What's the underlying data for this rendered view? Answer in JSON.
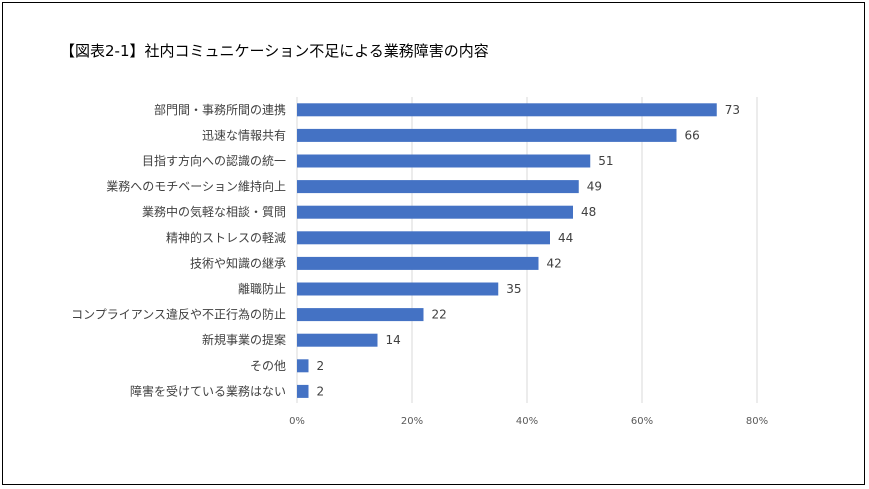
{
  "chart_data": {
    "type": "bar",
    "orientation": "horizontal",
    "title": "【図表2-1】社内コミュニケーション不足による業務障害の内容",
    "categories": [
      "部門間・事務所間の連携",
      "迅速な情報共有",
      "目指す方向への認識の統一",
      "業務へのモチベーション維持向上",
      "業務中の気軽な相談・質問",
      "精神的ストレスの軽減",
      "技術や知識の継承",
      "離職防止",
      "コンプライアンス違反や不正行為の防止",
      "新規事業の提案",
      "その他",
      "障害を受けている業務はない"
    ],
    "values": [
      73,
      66,
      51,
      49,
      48,
      44,
      42,
      35,
      22,
      14,
      2,
      2
    ],
    "xaxis_ticks": [
      "0%",
      "20%",
      "40%",
      "60%",
      "80%"
    ],
    "xlim": [
      0,
      80
    ],
    "grid": true,
    "bar_color": "#4472C4",
    "grid_color": "#D9D9D9"
  }
}
